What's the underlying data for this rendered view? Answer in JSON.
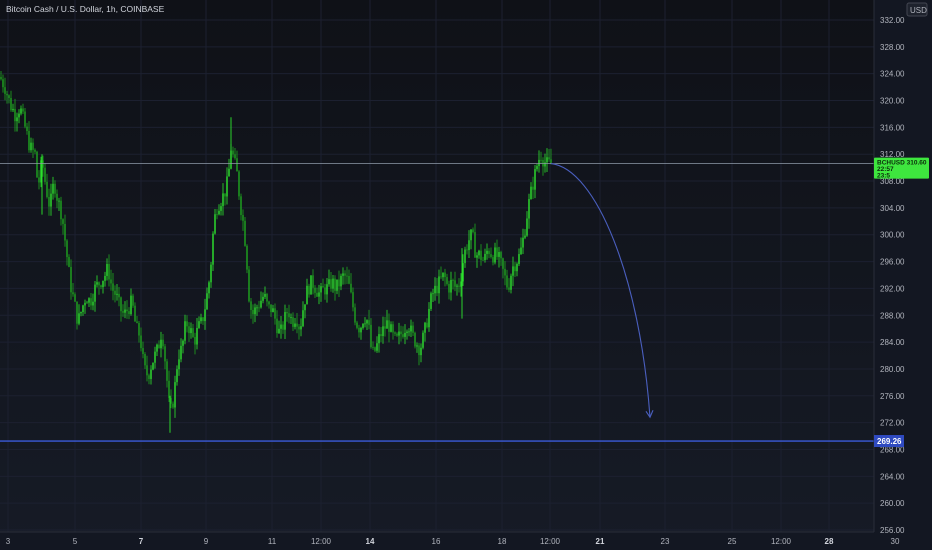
{
  "header": {
    "title": "Bitcoin Cash / U.S. Dollar, 1h, COINBASE",
    "currency_label": "USD"
  },
  "colors": {
    "background": "#131722",
    "candle_up": "#2ee82e",
    "candle_down": "#1fa81f",
    "grid": "#1c2030",
    "price_line": "#8e9aa8",
    "support_line": "#3b5bdb",
    "projection": "#4a5fbf",
    "axis_text": "#b2b5be"
  },
  "chart_data": {
    "type": "candlestick",
    "title": "Bitcoin Cash / U.S. Dollar, 1h, COINBASE",
    "ylim": [
      256,
      334
    ],
    "y_ticks": [
      "332.00",
      "328.00",
      "324.00",
      "320.00",
      "316.00",
      "312.00",
      "308.00",
      "304.00",
      "300.00",
      "296.00",
      "292.00",
      "288.00",
      "284.00",
      "280.00",
      "276.00",
      "272.00",
      "268.00",
      "264.00",
      "260.00",
      "256.00"
    ],
    "x_ticks": [
      {
        "label": "3",
        "bold": false
      },
      {
        "label": "5",
        "bold": false
      },
      {
        "label": "7",
        "bold": true
      },
      {
        "label": "9",
        "bold": false
      },
      {
        "label": "11",
        "bold": false
      },
      {
        "label": "12:00",
        "bold": false
      },
      {
        "label": "14",
        "bold": true
      },
      {
        "label": "16",
        "bold": false
      },
      {
        "label": "18",
        "bold": false
      },
      {
        "label": "12:00",
        "bold": false
      },
      {
        "label": "21",
        "bold": true
      },
      {
        "label": "23",
        "bold": false
      },
      {
        "label": "25",
        "bold": false
      },
      {
        "label": "12:00",
        "bold": false
      },
      {
        "label": "28",
        "bold": true
      },
      {
        "label": "30",
        "bold": false
      }
    ],
    "path_anchors": [
      [
        0,
        323.5
      ],
      [
        5,
        322
      ],
      [
        10,
        319.5
      ],
      [
        15,
        318
      ],
      [
        20,
        319
      ],
      [
        25,
        316
      ],
      [
        30,
        313
      ],
      [
        35,
        312
      ],
      [
        38,
        307
      ],
      [
        42,
        311
      ],
      [
        46,
        307
      ],
      [
        50,
        304
      ],
      [
        54,
        308
      ],
      [
        58,
        305
      ],
      [
        62,
        303
      ],
      [
        66,
        298
      ],
      [
        70,
        293
      ],
      [
        74,
        290
      ],
      [
        78,
        287
      ],
      [
        82,
        289
      ],
      [
        86,
        291
      ],
      [
        90,
        290
      ],
      [
        95,
        292
      ],
      [
        100,
        293
      ],
      [
        105,
        294
      ],
      [
        108,
        295
      ],
      [
        112,
        292
      ],
      [
        116,
        291
      ],
      [
        120,
        289
      ],
      [
        124,
        288
      ],
      [
        128,
        289
      ],
      [
        132,
        290
      ],
      [
        136,
        286
      ],
      [
        140,
        285
      ],
      [
        144,
        280
      ],
      [
        148,
        279
      ],
      [
        152,
        281
      ],
      [
        155,
        282
      ],
      [
        158,
        283
      ],
      [
        162,
        286
      ],
      [
        166,
        280
      ],
      [
        170,
        273
      ],
      [
        174,
        276
      ],
      [
        178,
        282
      ],
      [
        182,
        283
      ],
      [
        186,
        287
      ],
      [
        190,
        286
      ],
      [
        194,
        284
      ],
      [
        198,
        286
      ],
      [
        202,
        287
      ],
      [
        206,
        290
      ],
      [
        210,
        294
      ],
      [
        213,
        300
      ],
      [
        216,
        304
      ],
      [
        220,
        305
      ],
      [
        224,
        306
      ],
      [
        228,
        308
      ],
      [
        231,
        313
      ],
      [
        234,
        311
      ],
      [
        237,
        309
      ],
      [
        240,
        305
      ],
      [
        243,
        302
      ],
      [
        246,
        298
      ],
      [
        249,
        291
      ],
      [
        252,
        288
      ],
      [
        256,
        289
      ],
      [
        260,
        290
      ],
      [
        264,
        291
      ],
      [
        268,
        289
      ],
      [
        272,
        289
      ],
      [
        276,
        287
      ],
      [
        280,
        285
      ],
      [
        284,
        287
      ],
      [
        288,
        289
      ],
      [
        292,
        287
      ],
      [
        296,
        288
      ],
      [
        300,
        286
      ],
      [
        304,
        290
      ],
      [
        308,
        292
      ],
      [
        312,
        293
      ],
      [
        316,
        292
      ],
      [
        320,
        291
      ],
      [
        324,
        292
      ],
      [
        328,
        292
      ],
      [
        332,
        293
      ],
      [
        336,
        292
      ],
      [
        340,
        293
      ],
      [
        344,
        294
      ],
      [
        348,
        293
      ],
      [
        352,
        290
      ],
      [
        356,
        287
      ],
      [
        360,
        286
      ],
      [
        364,
        288
      ],
      [
        368,
        287
      ],
      [
        372,
        282
      ],
      [
        376,
        283
      ],
      [
        380,
        285
      ],
      [
        384,
        286
      ],
      [
        388,
        287
      ],
      [
        392,
        285
      ],
      [
        396,
        284
      ],
      [
        400,
        285
      ],
      [
        404,
        286
      ],
      [
        408,
        287
      ],
      [
        412,
        285
      ],
      [
        416,
        284
      ],
      [
        420,
        283
      ],
      [
        424,
        285
      ],
      [
        428,
        288
      ],
      [
        432,
        291
      ],
      [
        436,
        292
      ],
      [
        440,
        293
      ],
      [
        444,
        294
      ],
      [
        448,
        292
      ],
      [
        452,
        293
      ],
      [
        456,
        292
      ],
      [
        460,
        293
      ],
      [
        464,
        297
      ],
      [
        468,
        299
      ],
      [
        472,
        300
      ],
      [
        476,
        297
      ],
      [
        480,
        297
      ],
      [
        484,
        296
      ],
      [
        488,
        298
      ],
      [
        492,
        297
      ],
      [
        496,
        297
      ],
      [
        500,
        296
      ],
      [
        504,
        294
      ],
      [
        508,
        292
      ],
      [
        512,
        295
      ],
      [
        516,
        296
      ],
      [
        520,
        297
      ],
      [
        524,
        300
      ],
      [
        528,
        304
      ],
      [
        532,
        307
      ],
      [
        535,
        309
      ],
      [
        538,
        311
      ],
      [
        541,
        312
      ],
      [
        544,
        311
      ],
      [
        547,
        310.5
      ],
      [
        550,
        310.5
      ]
    ],
    "current_price_level": 310.6,
    "support_level": 269.26,
    "support_label": "269.26",
    "price_badge_lines": [
      "BCHUSD 310.60",
      "22:57",
      "23:5"
    ],
    "projection_target": 272.8
  }
}
